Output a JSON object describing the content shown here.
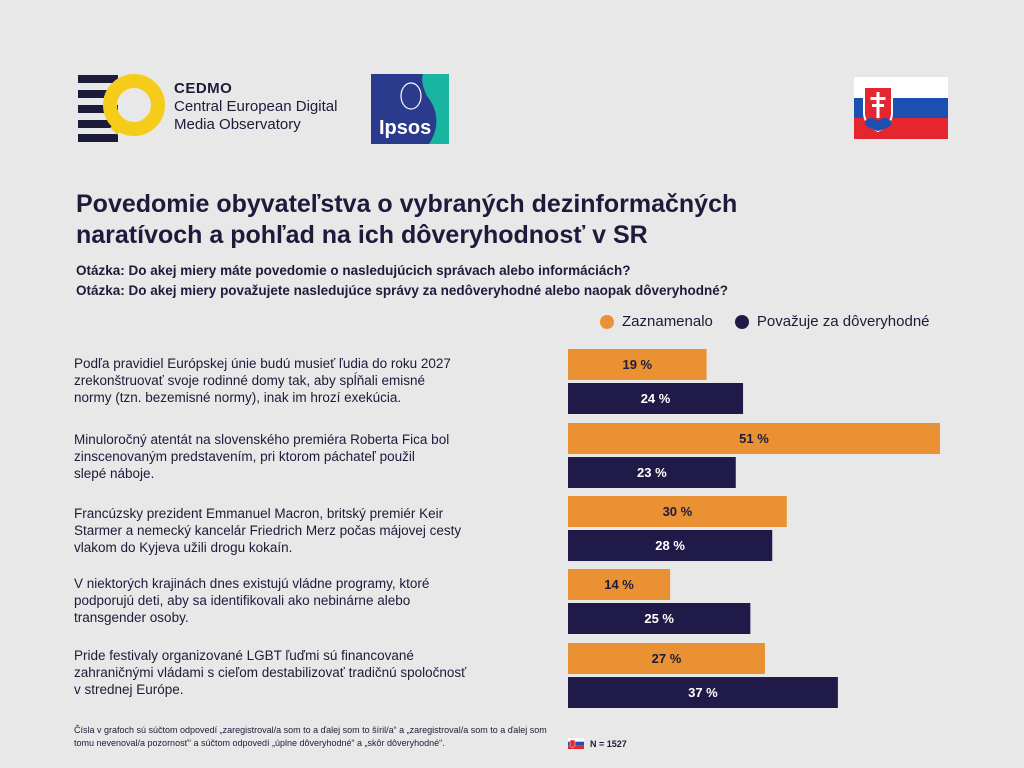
{
  "header": {
    "cedmo_brand": "CEDMO",
    "cedmo_line1": "Central European Digital",
    "cedmo_line2": "Media Observatory",
    "ipsos_logo_text": "Ipsos"
  },
  "title_line1": "Povedomie obyvateľstva o vybraných dezinformačných",
  "title_line2": "naratívoch a pohľad na ich dôveryhodnosť v SR",
  "question1": "Otázka: Do akej miery máte povedomie o nasledujúcich správach alebo informáciách?",
  "question2": "Otázka: Do akej miery považujete nasledujúce správy za nedôveryhodné alebo naopak dôveryhodné?",
  "colors": {
    "orange": "#ea9233",
    "navy": "#1f1a48",
    "background": "#e8e8e8"
  },
  "chart_data": {
    "type": "bar",
    "orientation": "horizontal",
    "categories": [
      [
        "Podľa pravidiel Európskej únie budú musieť ľudia do roku 2027",
        "zrekonštruovať svoje rodinné domy tak, aby spĺňali emisné",
        "normy (tzn. bezemisné normy), inak im hrozí exekúcia."
      ],
      [
        "Minuloročný atentát na slovenského premiéra Roberta Fica bol",
        "zinscenovaným predstavením, pri ktorom páchateľ použil",
        "slepé náboje."
      ],
      [
        "Francúzsky prezident Emmanuel Macron, britský premiér Keir",
        "Starmer a nemecký kancelár Friedrich Merz počas májovej cesty",
        "vlakom do Kyjeva užili drogu kokaín."
      ],
      [
        "V niektorých krajinách dnes existujú vládne programy, ktoré",
        "podporujú deti, aby sa identifikovali ako nebinárne alebo",
        "transgender osoby."
      ],
      [
        "Pride festivaly organizované LGBT ľuďmi sú financované",
        "zahraničnými vládami s cieľom destabilizovať tradičnú spoločnosť",
        "v strednej Európe."
      ]
    ],
    "series": [
      {
        "name": "Zaznamenalo",
        "values": [
          19,
          51,
          30,
          14,
          27
        ],
        "color": "#ea9233"
      },
      {
        "name": "Považuje za dôveryhodné",
        "values": [
          24,
          23,
          28,
          25,
          37
        ],
        "color": "#1f1a48"
      }
    ],
    "value_suffix": " %",
    "xlim": [
      0,
      51
    ],
    "legend_position": "top-right"
  },
  "footnote": "Čísla v grafoch sú súčtom odpovedí „zaregistroval/a som to a ďalej som to šíril/a“ a „zaregistroval/a som to a ďalej som tomu nevenoval/a pozornosť“ a súčtom odpovedí „úplne dôveryhodné“ a „skôr dôveryhodné“.",
  "sample_size": "N = 1527"
}
